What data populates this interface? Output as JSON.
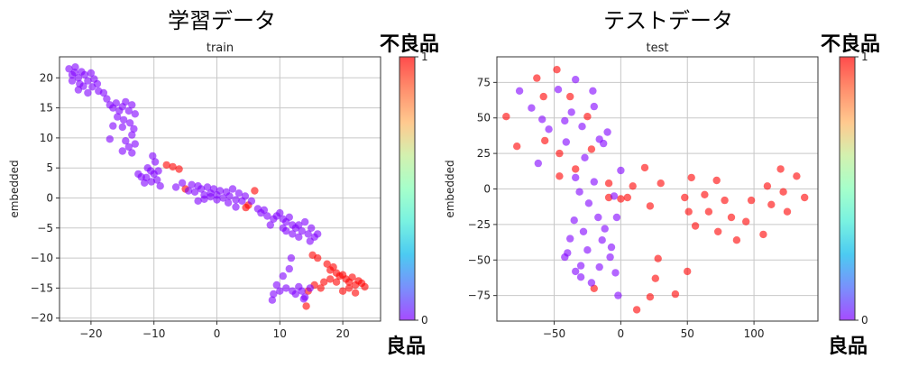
{
  "headings": {
    "left": "学習データ",
    "right": "テストデータ"
  },
  "colorbar_labels": {
    "top": "不良品",
    "bottom": "良品"
  },
  "colormap": [
    "#8000ff",
    "#4062fa",
    "#00b5eb",
    "#40ecd4",
    "#80ffb4",
    "#c0eb8d",
    "#ffb360",
    "#ff6130",
    "#ff0000"
  ],
  "chart_data": [
    {
      "type": "scatter",
      "title": "train",
      "ylabel": "embedded",
      "xlabel": "",
      "xlim": [
        -25,
        26
      ],
      "ylim": [
        -20.5,
        23.5
      ],
      "xticks": [
        -20,
        -10,
        0,
        10,
        20
      ],
      "yticks": [
        -20,
        -15,
        -10,
        -5,
        0,
        5,
        10,
        15,
        20
      ],
      "grid": true,
      "colorbar": {
        "min": 0,
        "max": 1,
        "ticks": [
          "0",
          "1"
        ]
      },
      "point_alpha": 0.6,
      "points": [
        [
          -23.5,
          21.5,
          0
        ],
        [
          -23,
          20.5,
          0
        ],
        [
          -22.5,
          21.8,
          0
        ],
        [
          -22,
          20,
          0
        ],
        [
          -21.8,
          19,
          0
        ],
        [
          -21.5,
          21,
          0
        ],
        [
          -21,
          20.5,
          0
        ],
        [
          -20.5,
          19.5,
          0
        ],
        [
          -20,
          20.8,
          0
        ],
        [
          -19.8,
          18.5,
          0
        ],
        [
          -19.5,
          19.8,
          0
        ],
        [
          -19,
          19,
          0
        ],
        [
          -18.8,
          17.8,
          0
        ],
        [
          -22,
          18,
          0
        ],
        [
          -23,
          19.5,
          0
        ],
        [
          -20.5,
          17.5,
          0
        ],
        [
          -21.2,
          18.6,
          0
        ],
        [
          -22.6,
          20.9,
          0
        ],
        [
          -18,
          17.5,
          0
        ],
        [
          -17.5,
          16.5,
          0
        ],
        [
          -17,
          15.5,
          0
        ],
        [
          -16.5,
          15,
          0
        ],
        [
          -16,
          15.8,
          0
        ],
        [
          -15.5,
          14.5,
          0
        ],
        [
          -15,
          15.2,
          0
        ],
        [
          -14.5,
          16,
          0
        ],
        [
          -14,
          14.5,
          0
        ],
        [
          -13.5,
          15.5,
          0
        ],
        [
          -13,
          14,
          0
        ],
        [
          -15.8,
          13.5,
          0
        ],
        [
          -14.8,
          13,
          0
        ],
        [
          -13.8,
          12.5,
          0
        ],
        [
          -13.2,
          11.5,
          0
        ],
        [
          -16.5,
          12,
          0
        ],
        [
          -15,
          11.8,
          0
        ],
        [
          -13.5,
          10.5,
          0
        ],
        [
          -14.5,
          9.5,
          0
        ],
        [
          -13,
          9,
          0
        ],
        [
          -17,
          9.8,
          0
        ],
        [
          -14,
          8.5,
          0
        ],
        [
          -13.5,
          7.5,
          0
        ],
        [
          -15,
          7.8,
          0
        ],
        [
          -12.5,
          4,
          0
        ],
        [
          -12,
          3.5,
          0
        ],
        [
          -11.5,
          2.5,
          0
        ],
        [
          -11,
          5,
          0
        ],
        [
          -10.5,
          4.5,
          0
        ],
        [
          -10,
          4,
          0
        ],
        [
          -9.5,
          3,
          0
        ],
        [
          -9,
          2,
          0
        ],
        [
          -10.2,
          7,
          0
        ],
        [
          -9.8,
          6,
          0
        ],
        [
          -9.3,
          4.5,
          0
        ],
        [
          -11.2,
          3.4,
          0
        ],
        [
          -10.4,
          2.7,
          0
        ],
        [
          -8,
          5.5,
          1
        ],
        [
          -7,
          5.2,
          1
        ],
        [
          -6,
          4.8,
          1
        ],
        [
          -5,
          1.5,
          1
        ],
        [
          -6.5,
          1.8,
          0
        ],
        [
          -5.5,
          2.5,
          0
        ],
        [
          -4.5,
          1.2,
          0
        ],
        [
          -4,
          2.2,
          0
        ],
        [
          -3.5,
          1,
          0
        ],
        [
          -3,
          2,
          0
        ],
        [
          -2.5,
          1.5,
          0
        ],
        [
          -2,
          0.5,
          0
        ],
        [
          -1.5,
          1.8,
          0
        ],
        [
          -1,
          0.8,
          0
        ],
        [
          -0.5,
          1.5,
          0
        ],
        [
          0,
          0.5,
          0
        ],
        [
          0.5,
          1.2,
          0
        ],
        [
          1,
          0,
          0
        ],
        [
          1.5,
          1,
          0
        ],
        [
          2,
          0.3,
          0
        ],
        [
          2.5,
          1.5,
          0
        ],
        [
          3,
          -0.3,
          0
        ],
        [
          3.5,
          0.8,
          0
        ],
        [
          4,
          -0.5,
          0
        ],
        [
          4.5,
          0.3,
          0
        ],
        [
          -3,
          -0.5,
          0
        ],
        [
          -2,
          -0.2,
          0
        ],
        [
          -1,
          0.2,
          0
        ],
        [
          0,
          -0.3,
          0
        ],
        [
          1.8,
          -0.8,
          0
        ],
        [
          5,
          -1.2,
          1
        ],
        [
          5.5,
          -0.5,
          0
        ],
        [
          6,
          1.2,
          1
        ],
        [
          4.6,
          -1.6,
          1
        ],
        [
          3,
          -1.5,
          0
        ],
        [
          6.5,
          -1.8,
          0
        ],
        [
          7,
          -2.5,
          0
        ],
        [
          7.5,
          -2,
          0
        ],
        [
          8,
          -3,
          0
        ],
        [
          8.5,
          -4.5,
          0
        ],
        [
          9,
          -3.5,
          0
        ],
        [
          9.5,
          -3,
          0
        ],
        [
          10,
          -2.5,
          0
        ],
        [
          10.5,
          -3.5,
          0
        ],
        [
          11,
          -4,
          0
        ],
        [
          11.5,
          -3.2,
          0
        ],
        [
          12,
          -4.5,
          0
        ],
        [
          12.5,
          -5,
          0
        ],
        [
          13,
          -4.5,
          0
        ],
        [
          13.5,
          -5.5,
          0
        ],
        [
          14,
          -4,
          0
        ],
        [
          14.5,
          -6,
          0
        ],
        [
          15,
          -5,
          0
        ],
        [
          15.5,
          -6.5,
          0
        ],
        [
          16,
          -6,
          0
        ],
        [
          12,
          -6,
          0
        ],
        [
          11,
          -5.5,
          0
        ],
        [
          10.5,
          -5,
          0
        ],
        [
          13,
          -6.5,
          0
        ],
        [
          14.8,
          -7.2,
          0
        ],
        [
          16,
          -10,
          1
        ],
        [
          15.2,
          -9.5,
          1
        ],
        [
          17.5,
          -11,
          1
        ],
        [
          18,
          -12,
          1
        ],
        [
          18.5,
          -11.5,
          1
        ],
        [
          19,
          -12.5,
          1
        ],
        [
          19.5,
          -13,
          1
        ],
        [
          20,
          -12.8,
          1
        ],
        [
          20.5,
          -13.5,
          1
        ],
        [
          21,
          -14,
          1
        ],
        [
          21.5,
          -13.2,
          1
        ],
        [
          22,
          -14.5,
          1
        ],
        [
          22.5,
          -13.8,
          1
        ],
        [
          23,
          -14.2,
          1
        ],
        [
          23.5,
          -14.8,
          1
        ],
        [
          20,
          -15.5,
          1
        ],
        [
          21,
          -15,
          1
        ],
        [
          22,
          -15.8,
          1
        ],
        [
          19,
          -14,
          1
        ],
        [
          18,
          -13.5,
          1
        ],
        [
          15.5,
          -14.5,
          1
        ],
        [
          14.5,
          -15.5,
          1
        ],
        [
          14.2,
          -18,
          1
        ],
        [
          16.5,
          -15,
          1
        ],
        [
          17,
          -14,
          1
        ],
        [
          11.8,
          -10,
          0
        ],
        [
          11.5,
          -11.8,
          0
        ],
        [
          10.5,
          -13,
          0
        ],
        [
          9.5,
          -14.5,
          0
        ],
        [
          10,
          -15.5,
          0
        ],
        [
          11,
          -15,
          0
        ],
        [
          12,
          -15.5,
          0
        ],
        [
          12.5,
          -16,
          0
        ],
        [
          13,
          -14.8,
          0
        ],
        [
          13.5,
          -15.5,
          0
        ],
        [
          14,
          -16.5,
          0
        ],
        [
          14.8,
          -15,
          0
        ],
        [
          9,
          -16,
          0
        ],
        [
          8.8,
          -17,
          0
        ],
        [
          13.8,
          -16.8,
          0
        ]
      ]
    },
    {
      "type": "scatter",
      "title": "test",
      "ylabel": "embedded",
      "xlabel": "",
      "xlim": [
        -93,
        148
      ],
      "ylim": [
        -93,
        93
      ],
      "xticks": [
        -50,
        0,
        50,
        100
      ],
      "yticks": [
        -75,
        -50,
        -25,
        0,
        25,
        50,
        75
      ],
      "grid": true,
      "colorbar": {
        "min": 0,
        "max": 1,
        "ticks": [
          "0",
          "1"
        ]
      },
      "point_alpha": 0.6,
      "points": [
        [
          -86,
          51,
          1
        ],
        [
          -78,
          30,
          1
        ],
        [
          -63,
          78,
          1
        ],
        [
          -58,
          65,
          1
        ],
        [
          -57,
          34,
          1
        ],
        [
          -48,
          84,
          1
        ],
        [
          -46,
          25,
          1
        ],
        [
          -46,
          9,
          1
        ],
        [
          -38,
          65,
          1
        ],
        [
          -34,
          14,
          1
        ],
        [
          -25,
          51,
          1
        ],
        [
          -22,
          28,
          1
        ],
        [
          -20,
          -70,
          1
        ],
        [
          -9,
          -6,
          1
        ],
        [
          -9,
          4,
          1
        ],
        [
          0,
          -7,
          1
        ],
        [
          5,
          -6,
          1
        ],
        [
          9,
          2,
          1
        ],
        [
          12,
          -85,
          1
        ],
        [
          18,
          15,
          1
        ],
        [
          22,
          -12,
          1
        ],
        [
          22,
          -76,
          1
        ],
        [
          26,
          -63,
          1
        ],
        [
          28,
          -49,
          1
        ],
        [
          30,
          4,
          1
        ],
        [
          41,
          -74,
          1
        ],
        [
          48,
          -6,
          1
        ],
        [
          50,
          -58,
          1
        ],
        [
          51,
          -16,
          1
        ],
        [
          53,
          8,
          1
        ],
        [
          56,
          -26,
          1
        ],
        [
          63,
          -4,
          1
        ],
        [
          66,
          -16,
          1
        ],
        [
          72,
          6,
          1
        ],
        [
          73,
          -30,
          1
        ],
        [
          78,
          -8,
          1
        ],
        [
          83,
          -20,
          1
        ],
        [
          87,
          -36,
          1
        ],
        [
          94,
          -23,
          1
        ],
        [
          98,
          -8,
          1
        ],
        [
          107,
          -32,
          1
        ],
        [
          110,
          2,
          1
        ],
        [
          113,
          -11,
          1
        ],
        [
          120,
          14,
          1
        ],
        [
          122,
          -2,
          1
        ],
        [
          125,
          -16,
          1
        ],
        [
          132,
          9,
          1
        ],
        [
          138,
          -6,
          1
        ],
        [
          -76,
          69,
          0
        ],
        [
          -67,
          57,
          0
        ],
        [
          -62,
          18,
          0
        ],
        [
          -59,
          49,
          0
        ],
        [
          -54,
          42,
          0
        ],
        [
          -47,
          70,
          0
        ],
        [
          -42,
          48,
          0
        ],
        [
          -41,
          33,
          0
        ],
        [
          -37,
          54,
          0
        ],
        [
          -34,
          77,
          0
        ],
        [
          -34,
          8,
          0
        ],
        [
          -31,
          -2,
          0
        ],
        [
          -29,
          44,
          0
        ],
        [
          -27,
          22,
          0
        ],
        [
          -21,
          69,
          0
        ],
        [
          -20,
          58,
          0
        ],
        [
          -17,
          -20,
          0
        ],
        [
          -16,
          35,
          0
        ],
        [
          -13,
          32,
          0
        ],
        [
          -10,
          40,
          0
        ],
        [
          -7,
          -41,
          0
        ],
        [
          -5,
          -5,
          0
        ],
        [
          -4,
          -59,
          0
        ],
        [
          -2,
          -75,
          0
        ],
        [
          0,
          13,
          0
        ],
        [
          -3,
          -20,
          0
        ],
        [
          -8,
          -48,
          0
        ],
        [
          -14,
          -36,
          0
        ],
        [
          -22,
          -66,
          0
        ],
        [
          -25,
          -43,
          0
        ],
        [
          -28,
          -30,
          0
        ],
        [
          -30,
          -54,
          0
        ],
        [
          -34,
          -58,
          0
        ],
        [
          -38,
          -35,
          0
        ],
        [
          -40,
          -45,
          0
        ],
        [
          -35,
          -22,
          0
        ],
        [
          -30,
          -62,
          0
        ],
        [
          -16,
          -55,
          0
        ],
        [
          -12,
          -28,
          0
        ],
        [
          -20,
          5,
          0
        ],
        [
          -42,
          -48,
          0
        ],
        [
          -24,
          -10,
          0
        ]
      ]
    }
  ]
}
